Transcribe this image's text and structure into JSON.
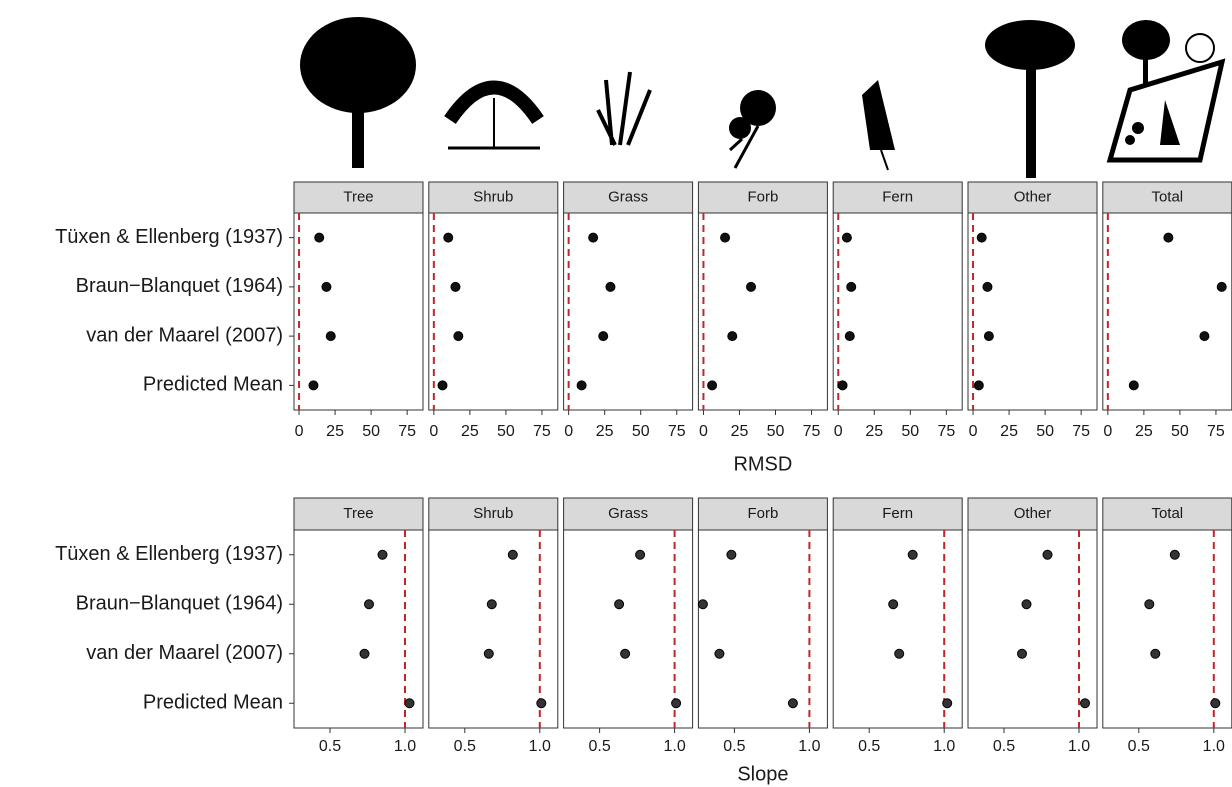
{
  "chart_data": [
    {
      "type": "dot",
      "x_label": "RMSD",
      "categories": [
        "Tüxen & Ellenberg (1937)",
        "Braun−Blanquet (1964)",
        "van der Maarel (2007)",
        "Predicted Mean"
      ],
      "xlim": [
        -3.5,
        86
      ],
      "xticks": [
        0,
        25,
        50,
        75
      ],
      "reference": 0,
      "reference_color": "#c0272d",
      "point_color": "#111111",
      "panels": [
        {
          "name": "Tree",
          "values": [
            14,
            19,
            22,
            10
          ]
        },
        {
          "name": "Shrub",
          "values": [
            10,
            15,
            17,
            6
          ]
        },
        {
          "name": "Grass",
          "values": [
            17,
            29,
            24,
            9
          ]
        },
        {
          "name": "Forb",
          "values": [
            15,
            33,
            20,
            6
          ]
        },
        {
          "name": "Fern",
          "values": [
            6,
            9,
            8,
            3
          ]
        },
        {
          "name": "Other",
          "values": [
            6,
            10,
            11,
            4
          ]
        },
        {
          "name": "Total",
          "values": [
            42,
            79,
            67,
            18
          ]
        }
      ]
    },
    {
      "type": "dot",
      "x_label": "Slope",
      "categories": [
        "Tüxen & Ellenberg (1937)",
        "Braun−Blanquet (1964)",
        "van der Maarel (2007)",
        "Predicted Mean"
      ],
      "xlim": [
        0.26,
        1.12
      ],
      "xticks": [
        0.5,
        {
          "value": 1,
          "label": "1.0"
        }
      ],
      "reference": 1,
      "reference_color": "#c0272d",
      "point_color": "#333333",
      "panels": [
        {
          "name": "Tree",
          "values": [
            0.85,
            0.76,
            0.73,
            1.03
          ]
        },
        {
          "name": "Shrub",
          "values": [
            0.82,
            0.68,
            0.66,
            1.01
          ]
        },
        {
          "name": "Grass",
          "values": [
            0.77,
            0.63,
            0.67,
            1.01
          ]
        },
        {
          "name": "Forb",
          "values": [
            0.48,
            0.29,
            0.4,
            0.89
          ]
        },
        {
          "name": "Fern",
          "values": [
            0.79,
            0.66,
            0.7,
            1.02
          ]
        },
        {
          "name": "Other",
          "values": [
            0.79,
            0.65,
            0.62,
            1.04
          ]
        },
        {
          "name": "Total",
          "values": [
            0.74,
            0.57,
            0.61,
            1.01
          ]
        }
      ]
    }
  ]
}
